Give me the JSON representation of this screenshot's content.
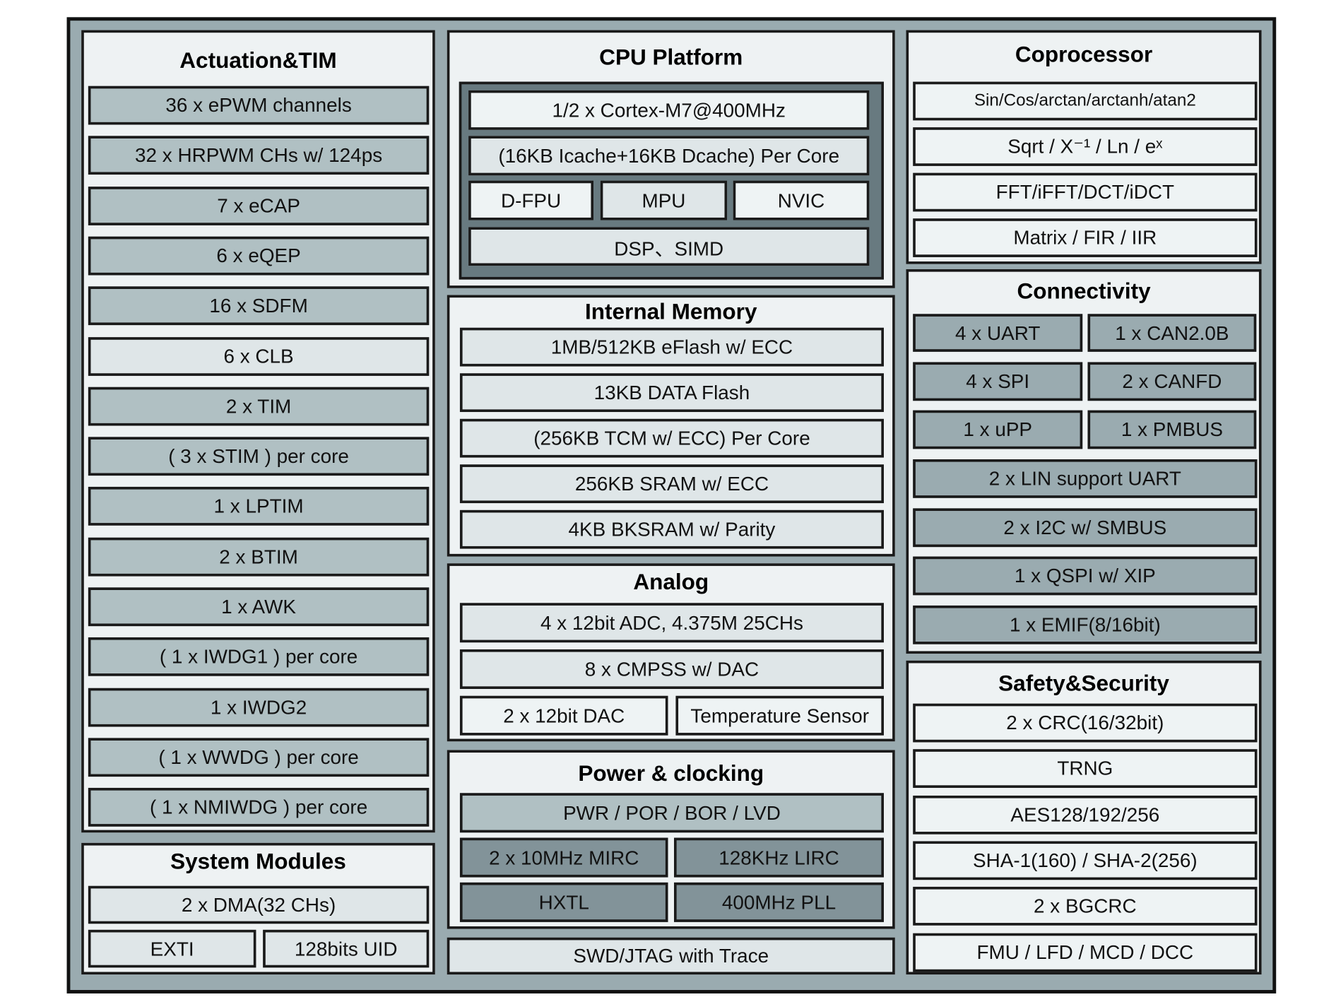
{
  "colors": {
    "frame": "#9aabb0",
    "panel": "#eef2f3",
    "mid": "#b0c0c3",
    "light": "#dfe6e8",
    "dark": "#829399",
    "cpu_core": "#687a80"
  },
  "actuation": {
    "title": "Actuation&TIM",
    "items": [
      "36 x ePWM channels",
      "32 x HRPWM CHs w/ 124ps",
      "7 x eCAP",
      "6 x eQEP",
      "16 x SDFM",
      "6 x CLB",
      "2 x TIM",
      "( 3 x STIM ) per core",
      "1 x LPTIM",
      "2 x BTIM",
      "1 x AWK",
      "( 1 x IWDG1 ) per core",
      "1 x IWDG2",
      "( 1 x WWDG ) per core",
      "( 1 x NMIWDG ) per core"
    ]
  },
  "system": {
    "title": "System Modules",
    "items": [
      "2 x DMA(32 CHs)",
      "EXTI",
      "128bits UID"
    ]
  },
  "cpu": {
    "title": "CPU Platform",
    "items": [
      "1/2 x Cortex-M7@400MHz",
      "(16KB Icache+16KB Dcache) Per Core",
      "D-FPU",
      "MPU",
      "NVIC",
      "DSP、SIMD"
    ]
  },
  "memory": {
    "title": "Internal Memory",
    "items": [
      "1MB/512KB eFlash w/ ECC",
      "13KB DATA Flash",
      "(256KB TCM w/ ECC) Per Core",
      "256KB SRAM w/ ECC",
      "4KB BKSRAM w/ Parity"
    ]
  },
  "analog": {
    "title": "Analog",
    "items": [
      "4 x 12bit ADC, 4.375M 25CHs",
      "8 x CMPSS w/ DAC",
      "2 x 12bit DAC",
      "Temperature Sensor"
    ]
  },
  "power": {
    "title": "Power & clocking",
    "items": [
      "PWR / POR / BOR / LVD",
      "2 x 10MHz MIRC",
      "128KHz LIRC",
      "HXTL",
      "400MHz PLL"
    ]
  },
  "debug": {
    "items": [
      "SWD/JTAG with Trace"
    ]
  },
  "coprocessor": {
    "title": "Coprocessor",
    "items": [
      "Sin/Cos/arctan/arctanh/atan2",
      "Sqrt / X⁻¹ / Ln / eˣ",
      "FFT/iFFT/DCT/iDCT",
      "Matrix / FIR / IIR"
    ]
  },
  "connectivity": {
    "title": "Connectivity",
    "items": [
      "4 x UART",
      "1 x CAN2.0B",
      "4 x SPI",
      "2 x CANFD",
      "1 x uPP",
      "1 x PMBUS",
      "2 x LIN support UART",
      "2 x I2C w/ SMBUS",
      "1 x QSPI w/ XIP",
      "1 x EMIF(8/16bit)"
    ]
  },
  "safety": {
    "title": "Safety&Security",
    "items": [
      "2 x CRC(16/32bit)",
      "TRNG",
      "AES128/192/256",
      "SHA-1(160) / SHA-2(256)",
      "2 x BGCRC",
      "FMU / LFD / MCD / DCC"
    ]
  }
}
